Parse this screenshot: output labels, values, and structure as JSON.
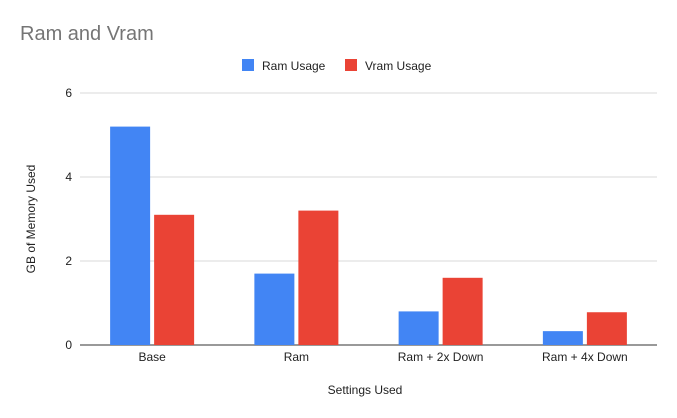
{
  "chart_data": {
    "type": "bar",
    "title": "Ram and Vram",
    "xlabel": "Settings Used",
    "ylabel": "GB of Memory Used",
    "categories": [
      "Base",
      "Ram",
      "Ram + 2x Down",
      "Ram + 4x Down"
    ],
    "series": [
      {
        "name": "Ram Usage",
        "color": "#4285f4",
        "values": [
          5.2,
          1.7,
          0.8,
          0.33
        ]
      },
      {
        "name": "Vram Usage",
        "color": "#ea4335",
        "values": [
          3.1,
          3.2,
          1.6,
          0.78
        ]
      }
    ],
    "ylim": [
      0,
      6
    ],
    "yticks": [
      "0",
      "2",
      "4",
      "6"
    ],
    "grid": true,
    "legend_position": "top-center"
  }
}
